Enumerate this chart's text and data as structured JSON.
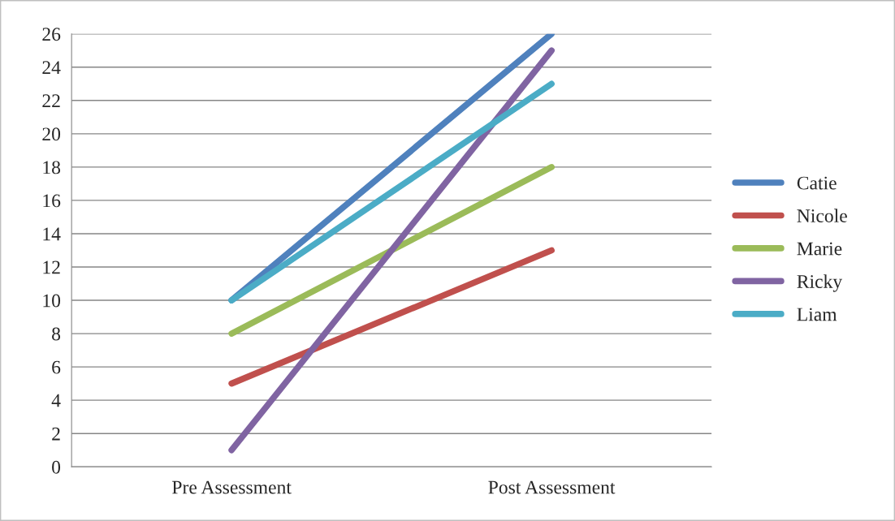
{
  "chart_data": {
    "type": "line",
    "categories": [
      "Pre Assessment",
      "Post Assessment"
    ],
    "series": [
      {
        "name": "Catie",
        "color": "#4f81bd",
        "values": [
          10,
          26
        ]
      },
      {
        "name": "Nicole",
        "color": "#c0504d",
        "values": [
          5,
          13
        ]
      },
      {
        "name": "Marie",
        "color": "#9bbb59",
        "values": [
          8,
          18
        ]
      },
      {
        "name": "Ricky",
        "color": "#8064a2",
        "values": [
          1,
          25
        ]
      },
      {
        "name": "Liam",
        "color": "#4bacc6",
        "values": [
          10,
          23
        ]
      }
    ],
    "ylim": [
      0,
      26
    ],
    "yticks": [
      0,
      2,
      4,
      6,
      8,
      10,
      12,
      14,
      16,
      18,
      20,
      22,
      24,
      26
    ],
    "grid": "y",
    "legend": "right",
    "marker": "none",
    "line_style": "solid"
  }
}
